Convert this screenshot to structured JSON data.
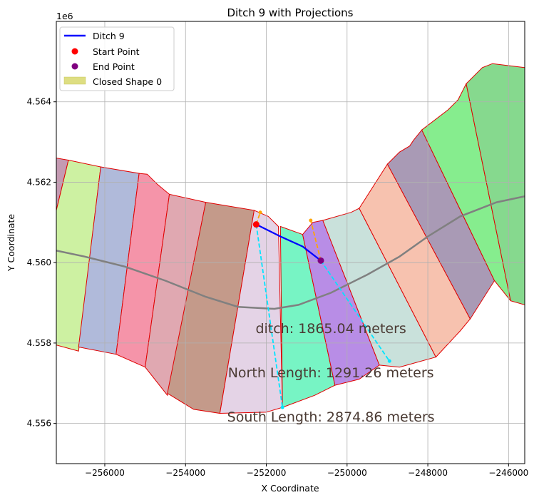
{
  "chart_data": {
    "type": "line",
    "title": "Ditch 9 with Projections",
    "xlabel": "X Coordinate",
    "ylabel": "Y Coordinate",
    "y_offset_label": "1e6",
    "xlim": [
      -257200,
      -245600
    ],
    "ylim": [
      4555000,
      4566000
    ],
    "grid": true,
    "legend_position": "upper-left",
    "x_ticks": [
      {
        "value": -256000,
        "label": "−256000"
      },
      {
        "value": -254000,
        "label": "−254000"
      },
      {
        "value": -252000,
        "label": "−252000"
      },
      {
        "value": -250000,
        "label": "−250000"
      },
      {
        "value": -248000,
        "label": "−248000"
      },
      {
        "value": -246000,
        "label": "−246000"
      }
    ],
    "y_ticks": [
      {
        "value": 4556000,
        "label": "4.556"
      },
      {
        "value": 4558000,
        "label": "4.558"
      },
      {
        "value": 4560000,
        "label": "4.560"
      },
      {
        "value": 4562000,
        "label": "4.562"
      },
      {
        "value": 4564000,
        "label": "4.564"
      }
    ],
    "legend": [
      {
        "label": "Ditch 9",
        "kind": "line",
        "color": "#0000ff"
      },
      {
        "label": "Start Point",
        "kind": "marker",
        "color": "#ff0000"
      },
      {
        "label": "End Point",
        "kind": "marker",
        "color": "#800080"
      },
      {
        "label": "Closed Shape 0",
        "kind": "patch",
        "color": "#dede82"
      }
    ],
    "shapes": [
      {
        "color": "#c49ab2",
        "points": [
          [
            -257200,
            4562600
          ],
          [
            -256900,
            4562550
          ],
          [
            -257200,
            4561300
          ]
        ]
      },
      {
        "color": "#cdf1a2",
        "points": [
          [
            -256900,
            4562550
          ],
          [
            -256100,
            4562380
          ],
          [
            -256650,
            4557800
          ],
          [
            -257200,
            4557950
          ],
          [
            -257200,
            4561300
          ]
        ]
      },
      {
        "color": "#b0bada",
        "points": [
          [
            -256100,
            4562380
          ],
          [
            -255150,
            4562220
          ],
          [
            -255720,
            4557720
          ],
          [
            -256650,
            4557900
          ]
        ]
      },
      {
        "color": "#f594a9",
        "points": [
          [
            -255150,
            4562220
          ],
          [
            -254950,
            4562200
          ],
          [
            -254700,
            4561950
          ],
          [
            -254400,
            4561700
          ],
          [
            -255000,
            4557400
          ],
          [
            -255720,
            4557720
          ]
        ]
      },
      {
        "color": "#e0a8b1",
        "points": [
          [
            -254400,
            4561700
          ],
          [
            -253500,
            4561500
          ],
          [
            -254450,
            4556700
          ],
          [
            -255000,
            4557400
          ]
        ]
      },
      {
        "color": "#c49a8a",
        "points": [
          [
            -253500,
            4561500
          ],
          [
            -252300,
            4561300
          ],
          [
            -253150,
            4556250
          ],
          [
            -253800,
            4556350
          ],
          [
            -254450,
            4556750
          ]
        ]
      },
      {
        "color": "#e4d3e6",
        "points": [
          [
            -252300,
            4561300
          ],
          [
            -251950,
            4561150
          ],
          [
            -251700,
            4560900
          ],
          [
            -251600,
            4556400
          ],
          [
            -252000,
            4556280
          ],
          [
            -253150,
            4556250
          ]
        ]
      },
      {
        "color": "#77f4c4",
        "points": [
          [
            -251650,
            4560900
          ],
          [
            -251100,
            4560700
          ],
          [
            -250300,
            4556950
          ],
          [
            -250800,
            4556700
          ],
          [
            -251600,
            4556400
          ]
        ]
      },
      {
        "color": "#b88de6",
        "points": [
          [
            -251100,
            4560700
          ],
          [
            -250850,
            4561000
          ],
          [
            -250600,
            4561050
          ],
          [
            -249200,
            4557450
          ],
          [
            -249700,
            4557100
          ],
          [
            -250300,
            4556950
          ]
        ]
      },
      {
        "color": "#c9e1db",
        "points": [
          [
            -250600,
            4561050
          ],
          [
            -249900,
            4561250
          ],
          [
            -249700,
            4561350
          ],
          [
            -247800,
            4557650
          ],
          [
            -248700,
            4557400
          ],
          [
            -249200,
            4557450
          ]
        ]
      },
      {
        "color": "#f7c2af",
        "points": [
          [
            -249700,
            4561350
          ],
          [
            -249000,
            4562450
          ],
          [
            -246950,
            4558600
          ],
          [
            -247200,
            4558300
          ],
          [
            -247800,
            4557650
          ]
        ]
      },
      {
        "color": "#a99ab5",
        "points": [
          [
            -249000,
            4562450
          ],
          [
            -248700,
            4562750
          ],
          [
            -248450,
            4562900
          ],
          [
            -248350,
            4563050
          ],
          [
            -248150,
            4563300
          ],
          [
            -246350,
            4559550
          ],
          [
            -246950,
            4558600
          ]
        ]
      },
      {
        "color": "#86ed8e",
        "points": [
          [
            -248150,
            4563300
          ],
          [
            -247500,
            4563800
          ],
          [
            -247250,
            4564050
          ],
          [
            -247050,
            4564450
          ],
          [
            -245950,
            4559050
          ],
          [
            -246350,
            4559550
          ]
        ]
      },
      {
        "color": "#86d98e",
        "points": [
          [
            -247050,
            4564450
          ],
          [
            -246650,
            4564850
          ],
          [
            -246400,
            4564950
          ],
          [
            -245600,
            4564850
          ],
          [
            -245600,
            4558950
          ],
          [
            -245950,
            4559050
          ]
        ]
      }
    ],
    "centerline": [
      [
        -257200,
        4560300
      ],
      [
        -256500,
        4560150
      ],
      [
        -255500,
        4559900
      ],
      [
        -254500,
        4559550
      ],
      [
        -253500,
        4559150
      ],
      [
        -252700,
        4558900
      ],
      [
        -251800,
        4558850
      ],
      [
        -251200,
        4558950
      ],
      [
        -250400,
        4559250
      ],
      [
        -249500,
        4559700
      ],
      [
        -248700,
        4560150
      ],
      [
        -248000,
        4560650
      ],
      [
        -247200,
        4561150
      ],
      [
        -246300,
        4561500
      ],
      [
        -245600,
        4561650
      ]
    ],
    "series": [
      {
        "name": "Ditch 9",
        "color": "#0000ff",
        "points": [
          [
            -252250,
            4560950
          ],
          [
            -251650,
            4560650
          ],
          [
            -251100,
            4560400
          ],
          [
            -250650,
            4560050
          ]
        ]
      }
    ],
    "start_point": [
      -252250,
      4560950
    ],
    "end_point": [
      -250650,
      4560050
    ],
    "projections": [
      {
        "color": "#00e5ff",
        "from": [
          -252250,
          4560950
        ],
        "to": [
          -251600,
          4556400
        ]
      },
      {
        "color": "#00e5ff",
        "from": [
          -250650,
          4560050
        ],
        "to": [
          -248950,
          4557550
        ]
      },
      {
        "color": "#ffa500",
        "from": [
          -252250,
          4560950
        ],
        "to": [
          -252150,
          4561250
        ]
      },
      {
        "color": "#ffa500",
        "from": [
          -250650,
          4560050
        ],
        "to": [
          -250900,
          4561050
        ]
      }
    ],
    "annotations": [
      {
        "text": "ditch: 1865.04 meters",
        "x": -250400,
        "y": 4558250
      },
      {
        "text": "North Length: 1291.26 meters",
        "x": -250400,
        "y": 4557150
      },
      {
        "text": "South Length: 2874.86 meters",
        "x": -250400,
        "y": 4556050
      }
    ]
  }
}
